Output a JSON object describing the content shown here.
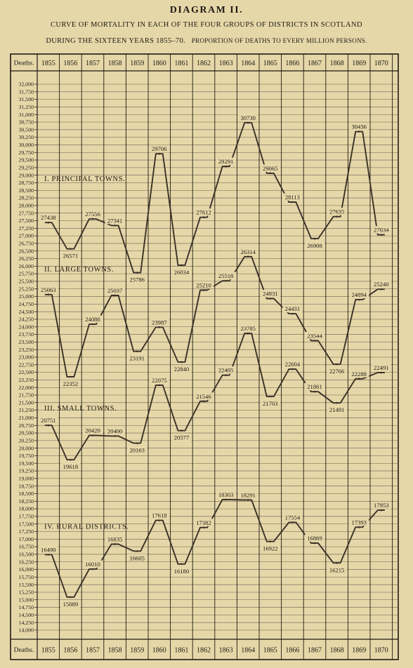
{
  "header": {
    "title": "DIAGRAM II.",
    "subtitle_line1": "CURVE OF MORTALITY IN EACH OF THE FOUR GROUPS OF DISTRICTS IN SCOTLAND",
    "subtitle_line2a": "DURING THE SIXTEEN YEARS 1855–70.",
    "subtitle_line2b": "PROPORTION OF DEATHS TO EVERY MILLION PERSONS."
  },
  "chart_data": {
    "type": "line",
    "corner_label": "Deaths.",
    "categories": [
      "1855",
      "1856",
      "1857",
      "1858",
      "1859",
      "1860",
      "1861",
      "1862",
      "1863",
      "1864",
      "1865",
      "1866",
      "1867",
      "1868",
      "1869",
      "1870"
    ],
    "ylim": [
      14000,
      32000
    ],
    "y_tick_step": 250,
    "grid": true,
    "series": [
      {
        "name": "I. PRINCIPAL TOWNS.",
        "values": [
          27438,
          26571,
          27556,
          27341,
          25786,
          29706,
          26034,
          27612,
          29291,
          30730,
          29065,
          28113,
          26908,
          27635,
          30436,
          27034
        ],
        "labels": [
          "27438",
          "26571",
          "27556",
          "27341",
          "25786",
          "29706",
          "26034",
          "27612",
          "29291",
          "30730",
          "29065",
          "28113",
          "26908",
          "27635",
          "30436",
          "27034"
        ]
      },
      {
        "name": "II. LARGE TOWNS.",
        "values": [
          25063,
          22352,
          24086,
          25037,
          23191,
          23987,
          22840,
          25210,
          25518,
          26314,
          24931,
          24431,
          23544,
          22766,
          24894,
          25240
        ],
        "labels": [
          "25063",
          "22352",
          "24086",
          "25037",
          "23191",
          "23987",
          "22840",
          "25210",
          "25518",
          "26314",
          "24931",
          "24431",
          "23544",
          "22766",
          "24894",
          "25240"
        ]
      },
      {
        "name": "III. SMALL TOWNS.",
        "values": [
          20751,
          19618,
          20420,
          20400,
          20163,
          22075,
          20577,
          21546,
          22405,
          23785,
          21703,
          22604,
          21861,
          21491,
          22288,
          22491
        ],
        "labels": [
          "20751",
          "19618",
          "20420",
          "20400",
          "20163",
          "22075",
          "20577",
          "21546",
          "22405",
          "23785",
          "21703",
          "22604",
          "21861",
          "21491",
          "22288",
          "22491"
        ]
      },
      {
        "name": "IV. RURAL DISTRICTS.",
        "values": [
          16490,
          15089,
          16010,
          16835,
          16605,
          17618,
          16180,
          17382,
          18303,
          18291,
          16922,
          17554,
          16869,
          16215,
          17393,
          17953
        ],
        "labels": [
          "16490",
          "15089",
          "16010",
          "16835",
          "16605",
          "17618",
          "16180",
          "17382",
          "18303",
          "18291",
          "16922",
          "17554",
          "16869",
          "16215",
          "17393",
          "17953"
        ]
      }
    ]
  }
}
